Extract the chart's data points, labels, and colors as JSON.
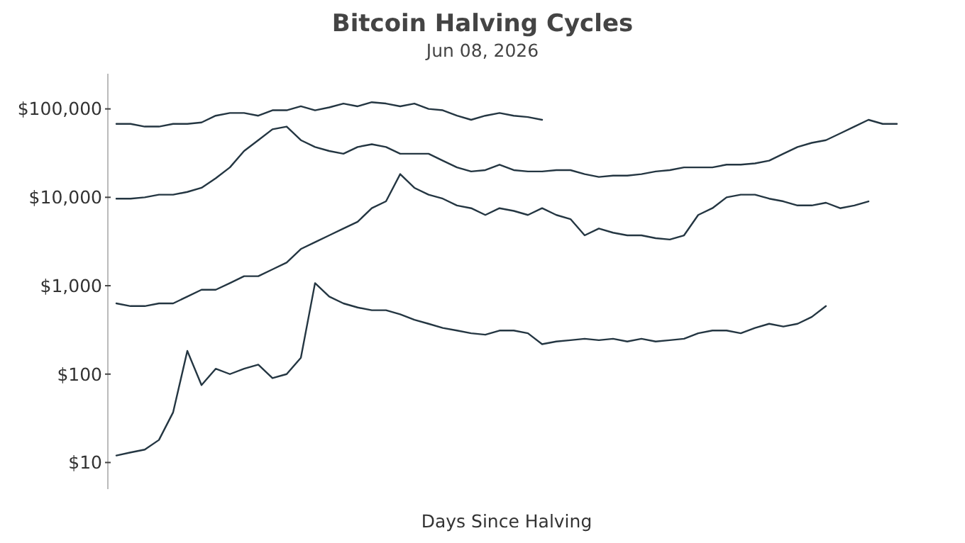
{
  "chart_data": {
    "type": "line",
    "title": "Bitcoin Halving Cycles",
    "subtitle": "Jun 08, 2026",
    "xlabel": "Days Since Halving",
    "categories": [
      null,
      null,
      null,
      null,
      null,
      null,
      null,
      null,
      null,
      null,
      null,
      null,
      null,
      null,
      null,
      null,
      null,
      null,
      null,
      null,
      null,
      null,
      null,
      null,
      null,
      null,
      null,
      null,
      null,
      null,
      null,
      null,
      null,
      null,
      null,
      null,
      null,
      null,
      null,
      null,
      null,
      null,
      null,
      null,
      null,
      null,
      null,
      null,
      null,
      null,
      null,
      null,
      null,
      null,
      null,
      null
    ],
    "log": true,
    "ylim": [
      5,
      250000
    ],
    "yticks": [
      {
        "value": 10,
        "label": "$10"
      },
      {
        "value": 100,
        "label": "$100"
      },
      {
        "value": 1000,
        "label": "$1,000"
      },
      {
        "value": 10000,
        "label": "$10,000"
      },
      {
        "value": 100000,
        "label": "$100,000"
      }
    ],
    "tick_labels": "y",
    "series": [
      {
        "color": "#243642",
        "values": [
          12,
          13,
          14,
          18,
          37,
          183,
          75,
          115,
          100,
          115,
          128,
          90,
          100,
          153,
          1070,
          753,
          631,
          567,
          528,
          528,
          475,
          412,
          371,
          333,
          311,
          290,
          279,
          311,
          311,
          290,
          218,
          234,
          242,
          251,
          242,
          251,
          234,
          251,
          234,
          242,
          251,
          290,
          311,
          311,
          290,
          333,
          371,
          345,
          371,
          443,
          588,
          null,
          null,
          null,
          null,
          null
        ]
      },
      {
        "color": "#243642",
        "values": [
          631,
          588,
          588,
          631,
          631,
          753,
          900,
          900,
          1070,
          1280,
          1280,
          1530,
          1830,
          2600,
          3110,
          3710,
          4430,
          5290,
          7530,
          9000,
          18300,
          12800,
          10700,
          9660,
          8090,
          7530,
          6310,
          7530,
          7020,
          6310,
          7530,
          6310,
          5670,
          3710,
          4430,
          3980,
          3710,
          3710,
          3450,
          3330,
          3710,
          6310,
          7530,
          10000,
          10700,
          10700,
          9660,
          9000,
          8090,
          8090,
          8680,
          7530,
          8090,
          9000,
          null,
          null
        ]
      },
      {
        "color": "#243642",
        "values": [
          9660,
          9660,
          10000,
          10700,
          10700,
          11500,
          12800,
          16400,
          21800,
          33400,
          44300,
          58800,
          63100,
          44300,
          37100,
          33400,
          31100,
          37100,
          39800,
          37100,
          31100,
          31100,
          31100,
          26000,
          21800,
          19600,
          20300,
          23400,
          20300,
          19600,
          19600,
          20300,
          20300,
          18300,
          17000,
          17600,
          17600,
          18300,
          19600,
          20300,
          21800,
          21800,
          21800,
          23400,
          23400,
          24200,
          26000,
          31100,
          37100,
          41300,
          44300,
          52800,
          63100,
          75300,
          67700,
          67700
        ]
      },
      {
        "color": "#243642",
        "values": [
          67700,
          67700,
          63100,
          63100,
          67700,
          67700,
          70200,
          83800,
          90000,
          90000,
          83800,
          96500,
          96500,
          107000,
          96500,
          104000,
          115000,
          107000,
          119000,
          115000,
          107000,
          115000,
          100000,
          96500,
          83800,
          75300,
          83800,
          90000,
          83800,
          80900,
          75300,
          null,
          null,
          null,
          null,
          null,
          null,
          null,
          null,
          null,
          null,
          null,
          null,
          null,
          null,
          null,
          null,
          null,
          null,
          null,
          null,
          null,
          null,
          null,
          null,
          null
        ]
      }
    ]
  }
}
